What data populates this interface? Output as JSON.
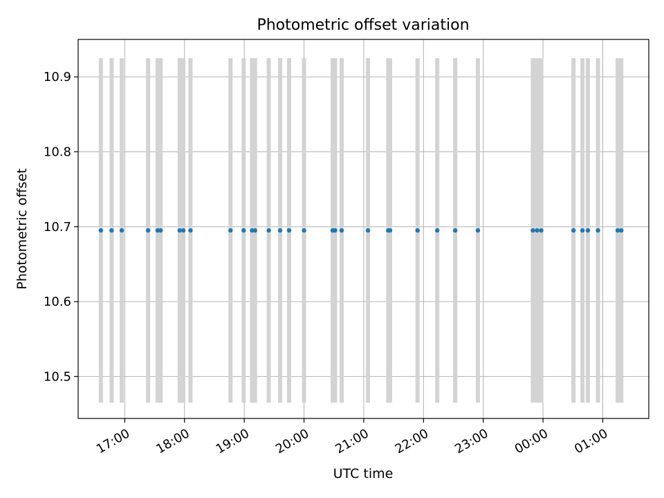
{
  "chart_data": {
    "type": "scatter",
    "title": "Photometric offset variation",
    "xlabel": "UTC time",
    "ylabel": "Photometric offset",
    "grid": true,
    "x_tick_labels": [
      "17:00",
      "18:00",
      "19:00",
      "20:00",
      "21:00",
      "22:00",
      "23:00",
      "00:00",
      "01:00"
    ],
    "x_tick_values": [
      17,
      18,
      19,
      20,
      21,
      22,
      23,
      24,
      25
    ],
    "y_ticks": [
      10.5,
      10.6,
      10.7,
      10.8,
      10.9
    ],
    "y_tick_labels": [
      "10.5",
      "10.6",
      "10.7",
      "10.8",
      "10.9"
    ],
    "xlim": [
      16.22,
      25.77
    ],
    "ylim": [
      10.444,
      10.95
    ],
    "error_bar_range": [
      10.465,
      10.925
    ],
    "colors": {
      "points": "#1f77b4",
      "error_bars": "#d3d3d3",
      "grid": "#b0b0b0"
    },
    "x": [
      16.6,
      16.78,
      16.95,
      17.39,
      17.55,
      17.6,
      17.92,
      17.98,
      18.1,
      18.77,
      18.99,
      19.13,
      19.18,
      19.41,
      19.6,
      19.75,
      20.0,
      20.48,
      20.52,
      20.63,
      21.07,
      21.41,
      21.44,
      21.9,
      22.23,
      22.53,
      22.91,
      23.83,
      23.9,
      23.97,
      24.51,
      24.66,
      24.75,
      24.92,
      25.25,
      25.31
    ],
    "y": [
      10.695,
      10.695,
      10.695,
      10.695,
      10.695,
      10.695,
      10.695,
      10.695,
      10.695,
      10.695,
      10.695,
      10.695,
      10.695,
      10.695,
      10.695,
      10.695,
      10.695,
      10.695,
      10.695,
      10.695,
      10.695,
      10.695,
      10.695,
      10.695,
      10.695,
      10.695,
      10.695,
      10.695,
      10.695,
      10.695,
      10.695,
      10.695,
      10.695,
      10.695,
      10.695,
      10.695
    ]
  }
}
